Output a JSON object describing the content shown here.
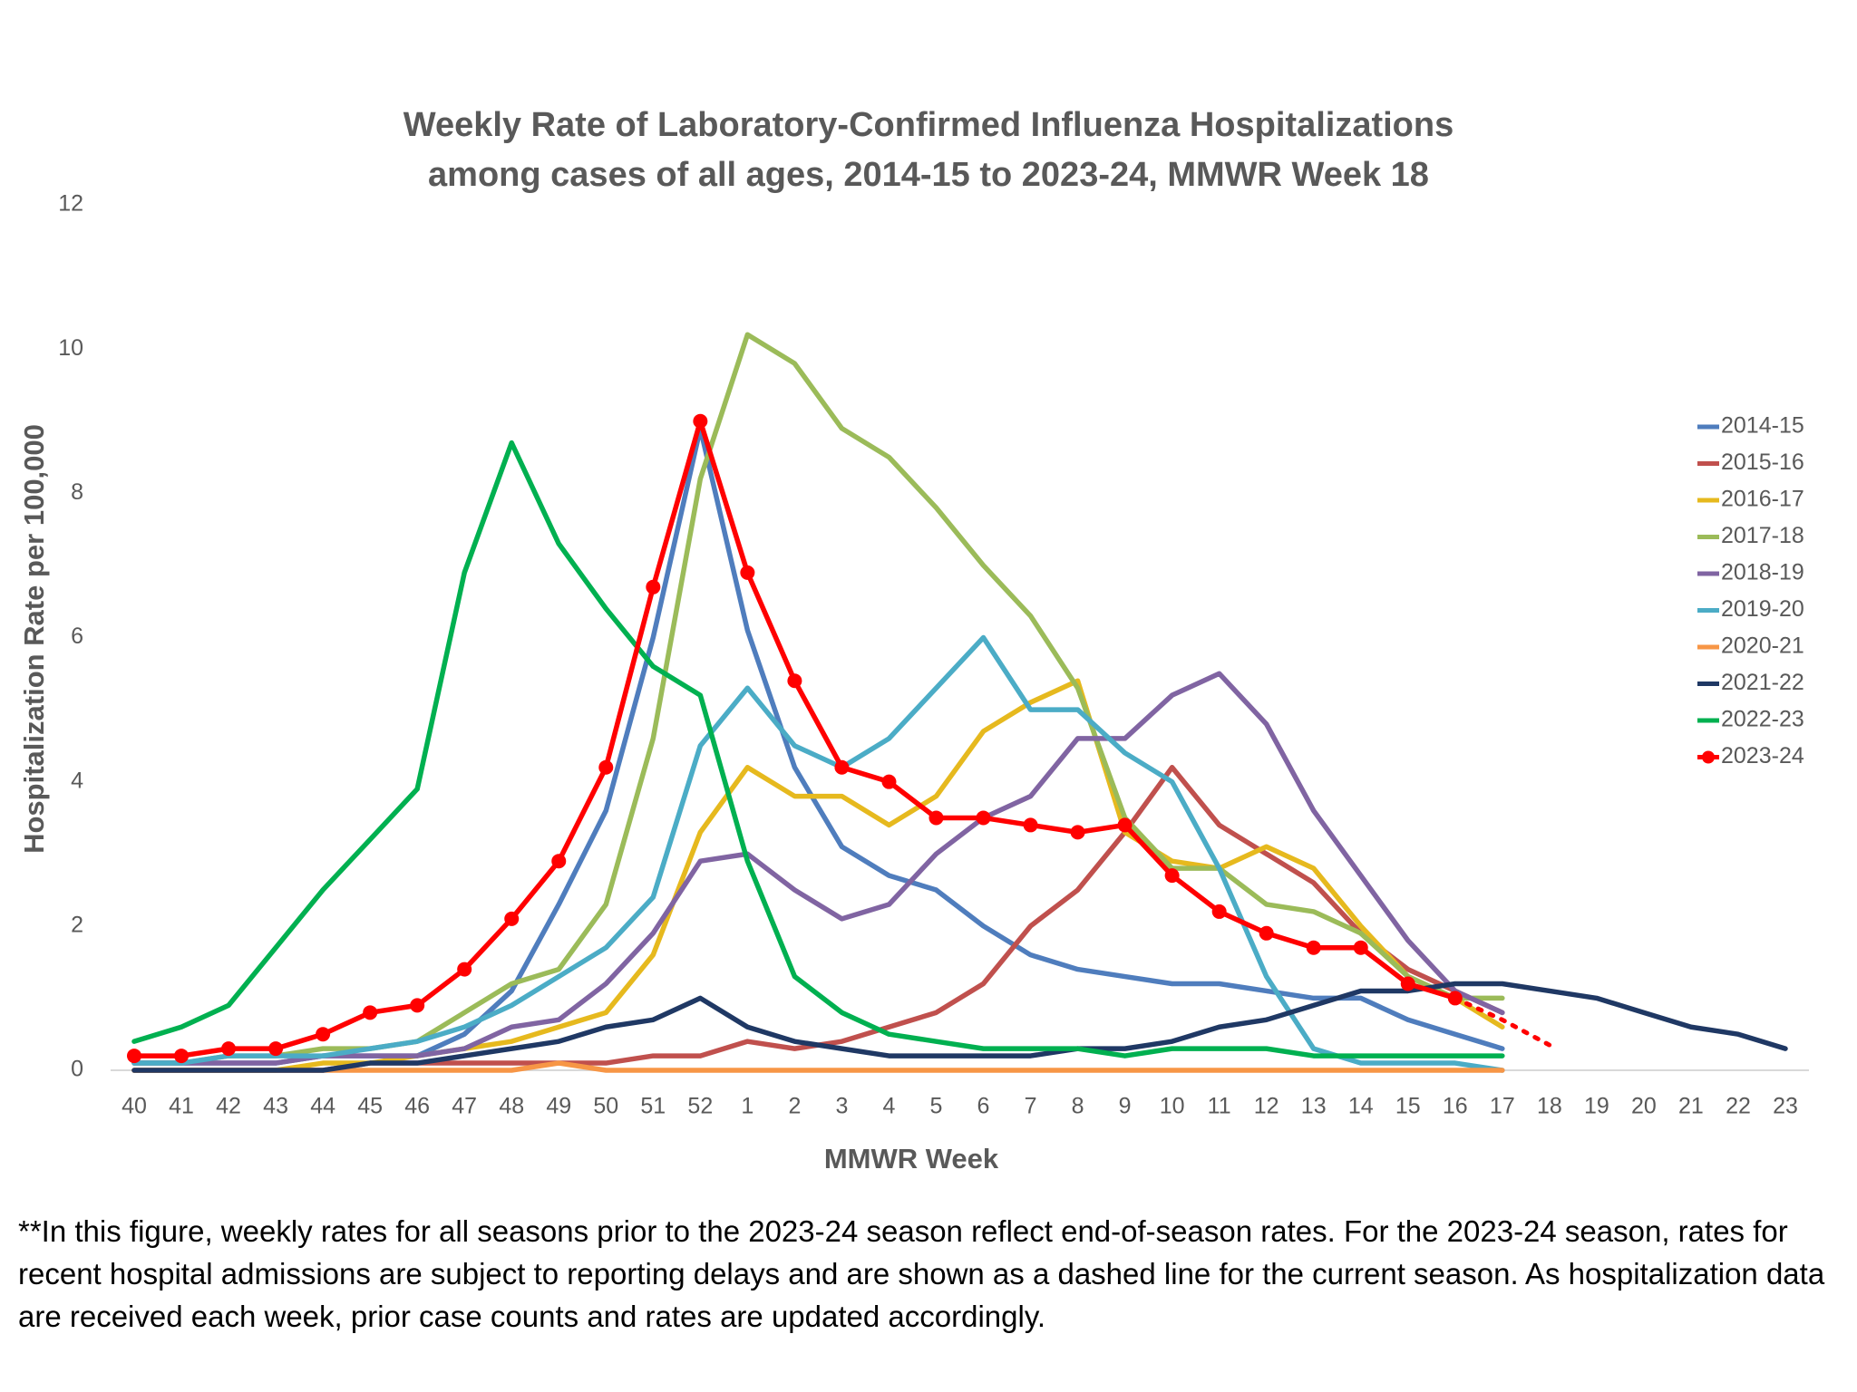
{
  "chart_data": {
    "type": "line",
    "title": [
      "Weekly Rate of Laboratory-Confirmed Influenza Hospitalizations",
      "among cases of all ages, 2014-15 to 2023-24, MMWR Week 18"
    ],
    "x_label": "MMWR Week",
    "y_label": "Hospitalization Rate per 100,000",
    "categories": [
      "40",
      "41",
      "42",
      "43",
      "44",
      "45",
      "46",
      "47",
      "48",
      "49",
      "50",
      "51",
      "52",
      "1",
      "2",
      "3",
      "4",
      "5",
      "6",
      "7",
      "8",
      "9",
      "10",
      "11",
      "12",
      "13",
      "14",
      "15",
      "16",
      "17",
      "18",
      "19",
      "20",
      "21",
      "22",
      "23"
    ],
    "ylim": [
      0,
      12
    ],
    "yticks": [
      0,
      2,
      4,
      6,
      8,
      10,
      12
    ],
    "grid": false,
    "legend": "right",
    "series": [
      {
        "name": "2014-15",
        "color": "#4f7dbd",
        "values": [
          0.1,
          0.1,
          0.1,
          0.1,
          0.2,
          0.2,
          0.2,
          0.5,
          1.1,
          2.3,
          3.6,
          6.0,
          8.9,
          6.1,
          4.2,
          3.1,
          2.7,
          2.5,
          2.0,
          1.6,
          1.4,
          1.3,
          1.2,
          1.2,
          1.1,
          1.0,
          1.0,
          0.7,
          0.5,
          0.3,
          null,
          null,
          null,
          null,
          null,
          null
        ]
      },
      {
        "name": "2015-16",
        "color": "#c0504d",
        "values": [
          0,
          0,
          0,
          0,
          0,
          0.1,
          0.1,
          0.1,
          0.1,
          0.1,
          0.1,
          0.2,
          0.2,
          0.4,
          0.3,
          0.4,
          0.6,
          0.8,
          1.2,
          2.0,
          2.5,
          3.3,
          4.2,
          3.4,
          3.0,
          2.6,
          1.9,
          1.4,
          1.1,
          0.8,
          null,
          null,
          null,
          null,
          null,
          null
        ]
      },
      {
        "name": "2016-17",
        "color": "#e6b91e",
        "values": [
          0,
          0,
          0,
          0,
          0.1,
          0.1,
          0.2,
          0.3,
          0.4,
          0.6,
          0.8,
          1.6,
          3.3,
          4.2,
          3.8,
          3.8,
          3.4,
          3.8,
          4.7,
          5.1,
          5.4,
          3.3,
          2.9,
          2.8,
          3.1,
          2.8,
          2.0,
          1.3,
          1.0,
          0.6,
          null,
          null,
          null,
          null,
          null,
          null
        ]
      },
      {
        "name": "2017-18",
        "color": "#9bbb59",
        "values": [
          0.1,
          0.1,
          0.2,
          0.2,
          0.3,
          0.3,
          0.4,
          0.8,
          1.2,
          1.4,
          2.3,
          4.6,
          8.2,
          10.2,
          9.8,
          8.9,
          8.5,
          7.8,
          7.0,
          6.3,
          5.3,
          3.5,
          2.8,
          2.8,
          2.3,
          2.2,
          1.9,
          1.3,
          1.0,
          1.0,
          null,
          null,
          null,
          null,
          null,
          null
        ]
      },
      {
        "name": "2018-19",
        "color": "#8064a2",
        "values": [
          0.1,
          0.1,
          0.1,
          0.1,
          0.2,
          0.2,
          0.2,
          0.3,
          0.6,
          0.7,
          1.2,
          1.9,
          2.9,
          3.0,
          2.5,
          2.1,
          2.3,
          3.0,
          3.5,
          3.8,
          4.6,
          4.6,
          5.2,
          5.5,
          4.8,
          3.6,
          2.7,
          1.8,
          1.1,
          0.8,
          null,
          null,
          null,
          null,
          null,
          null
        ]
      },
      {
        "name": "2019-20",
        "color": "#4bacc6",
        "values": [
          0.1,
          0.1,
          0.2,
          0.2,
          0.2,
          0.3,
          0.4,
          0.6,
          0.9,
          1.3,
          1.7,
          2.4,
          4.5,
          5.3,
          4.5,
          4.2,
          4.6,
          5.3,
          6.0,
          5.0,
          5.0,
          4.4,
          4.0,
          2.8,
          1.3,
          0.3,
          0.1,
          0.1,
          0.1,
          0,
          null,
          null,
          null,
          null,
          null,
          null
        ]
      },
      {
        "name": "2020-21",
        "color": "#f79646",
        "values": [
          0,
          0,
          0,
          0,
          0,
          0,
          0,
          0,
          0,
          0.1,
          0,
          0,
          0,
          0,
          0,
          0,
          0,
          0,
          0,
          0,
          0,
          0,
          0,
          0,
          0,
          0,
          0,
          0,
          0,
          0,
          null,
          null,
          null,
          null,
          null,
          null
        ]
      },
      {
        "name": "2021-22",
        "color": "#1f3864",
        "values": [
          0,
          0,
          0,
          0,
          0,
          0.1,
          0.1,
          0.2,
          0.3,
          0.4,
          0.6,
          0.7,
          1.0,
          0.6,
          0.4,
          0.3,
          0.2,
          0.2,
          0.2,
          0.2,
          0.3,
          0.3,
          0.4,
          0.6,
          0.7,
          0.9,
          1.1,
          1.1,
          1.2,
          1.2,
          1.1,
          1.0,
          0.8,
          0.6,
          0.5,
          0.3
        ]
      },
      {
        "name": "2022-23",
        "color": "#00b050",
        "values": [
          0.4,
          0.6,
          0.9,
          1.7,
          2.5,
          3.2,
          3.9,
          6.9,
          8.7,
          7.3,
          6.4,
          5.6,
          5.2,
          2.9,
          1.3,
          0.8,
          0.5,
          0.4,
          0.3,
          0.3,
          0.3,
          0.2,
          0.3,
          0.3,
          0.3,
          0.2,
          0.2,
          0.2,
          0.2,
          0.2,
          null,
          null,
          null,
          null,
          null,
          null
        ]
      },
      {
        "name": "2023-24",
        "color": "#ff0000",
        "markers": true,
        "dashed_from": 28,
        "values": [
          0.2,
          0.2,
          0.3,
          0.3,
          0.5,
          0.8,
          0.9,
          1.4,
          2.1,
          2.9,
          4.2,
          6.7,
          9.0,
          6.9,
          5.4,
          4.2,
          4.0,
          3.5,
          3.5,
          3.4,
          3.3,
          3.4,
          2.7,
          2.2,
          1.9,
          1.7,
          1.7,
          1.2,
          1.0,
          0.7,
          0.35,
          null,
          null,
          null,
          null,
          null
        ]
      }
    ],
    "footnote": "**In this figure, weekly rates for all seasons prior to the 2023-24 season reflect end-of-season rates. For the 2023-24 season, rates for recent hospital admissions are subject to reporting delays and are shown as a dashed line for the current season. As hospitalization data are received each week, prior case counts and rates are updated accordingly."
  }
}
